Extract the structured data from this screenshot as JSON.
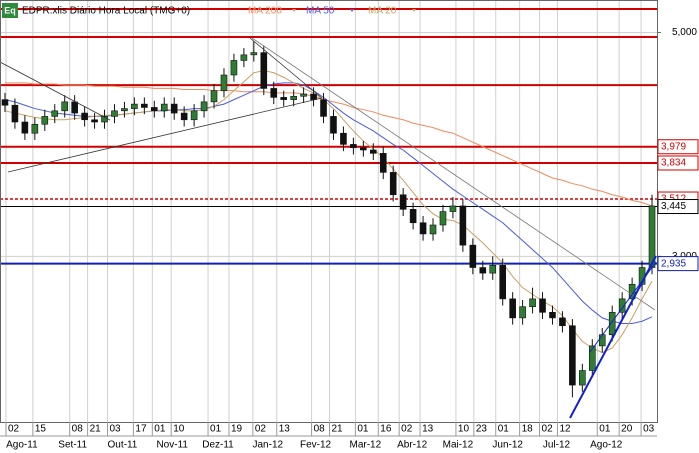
{
  "chart_data": {
    "type": "candlestick",
    "badge": "Eq",
    "title": "EDPR.xlis Diário Hora Local (TMG+0)",
    "open": [
      4.4,
      4.35,
      4.2,
      4.1,
      4.18,
      4.25,
      4.3,
      4.38,
      4.28,
      4.22,
      4.2,
      4.25,
      4.3,
      4.32,
      4.36,
      4.33,
      4.3,
      4.36,
      4.28,
      4.22,
      4.3,
      4.38,
      4.48,
      4.62,
      4.75,
      4.8,
      4.82,
      4.5,
      4.42,
      4.4,
      4.43,
      4.45,
      4.4,
      4.25,
      4.1,
      4.0,
      3.97,
      3.95,
      3.92,
      3.75,
      3.55,
      3.42,
      3.3,
      3.2,
      3.28,
      3.4,
      3.45,
      3.1,
      2.9,
      2.85,
      2.92,
      2.62,
      2.45,
      2.55,
      2.62,
      2.5,
      2.45,
      2.38,
      1.85,
      1.98,
      2.2,
      2.3,
      2.5,
      2.62,
      2.75,
      2.9
    ],
    "high": [
      4.46,
      4.41,
      4.26,
      4.24,
      4.31,
      4.36,
      4.44,
      4.44,
      4.34,
      4.28,
      4.31,
      4.36,
      4.38,
      4.42,
      4.42,
      4.39,
      4.42,
      4.42,
      4.34,
      4.36,
      4.44,
      4.54,
      4.68,
      4.81,
      4.86,
      4.92,
      4.88,
      4.56,
      4.48,
      4.49,
      4.51,
      4.51,
      4.46,
      4.31,
      4.16,
      4.06,
      4.03,
      4.01,
      3.98,
      3.81,
      3.61,
      3.48,
      3.36,
      3.34,
      3.46,
      3.53,
      3.51,
      3.16,
      2.96,
      3.0,
      2.98,
      2.68,
      2.61,
      2.72,
      2.68,
      2.56,
      2.51,
      2.44,
      2.04,
      2.26,
      2.36,
      2.56,
      2.68,
      2.81,
      2.96,
      3.55
    ],
    "low": [
      4.29,
      4.14,
      4.04,
      4.04,
      4.12,
      4.19,
      4.24,
      4.22,
      4.16,
      4.14,
      4.14,
      4.19,
      4.24,
      4.26,
      4.27,
      4.24,
      4.24,
      4.22,
      4.16,
      4.16,
      4.24,
      4.32,
      4.42,
      4.56,
      4.69,
      4.74,
      4.44,
      4.36,
      4.34,
      4.34,
      4.37,
      4.34,
      4.19,
      4.04,
      3.94,
      3.91,
      3.89,
      3.86,
      3.69,
      3.49,
      3.36,
      3.24,
      3.14,
      3.14,
      3.22,
      3.34,
      3.04,
      2.84,
      2.79,
      2.79,
      2.56,
      2.39,
      2.39,
      2.49,
      2.44,
      2.39,
      2.32,
      1.74,
      1.79,
      1.92,
      2.14,
      2.24,
      2.44,
      2.56,
      2.69,
      2.84
    ],
    "close": [
      4.35,
      4.2,
      4.1,
      4.18,
      4.25,
      4.3,
      4.38,
      4.28,
      4.22,
      4.2,
      4.25,
      4.3,
      4.32,
      4.36,
      4.33,
      4.3,
      4.36,
      4.28,
      4.22,
      4.3,
      4.38,
      4.48,
      4.62,
      4.75,
      4.8,
      4.82,
      4.5,
      4.42,
      4.4,
      4.43,
      4.45,
      4.4,
      4.25,
      4.1,
      4.0,
      3.97,
      3.95,
      3.92,
      3.75,
      3.55,
      3.42,
      3.3,
      3.2,
      3.28,
      3.4,
      3.45,
      3.1,
      2.9,
      2.85,
      2.92,
      2.62,
      2.45,
      2.55,
      2.62,
      2.5,
      2.45,
      2.38,
      1.85,
      1.98,
      2.2,
      2.3,
      2.5,
      2.62,
      2.75,
      2.9,
      3.45
    ],
    "up_color": "#2e7d32",
    "down_color": "#111111",
    "series": [
      {
        "name": "MA 200",
        "color": "#f08a5a",
        "values": [
          4.55,
          4.55,
          4.55,
          4.54,
          4.54,
          4.54,
          4.53,
          4.53,
          4.53,
          4.52,
          4.52,
          4.52,
          4.51,
          4.51,
          4.51,
          4.5,
          4.5,
          4.5,
          4.49,
          4.49,
          4.49,
          4.48,
          4.48,
          4.48,
          4.47,
          4.47,
          4.47,
          4.46,
          4.46,
          4.46,
          4.45,
          4.43,
          4.4,
          4.38,
          4.36,
          4.33,
          4.31,
          4.29,
          4.26,
          4.24,
          4.22,
          4.19,
          4.17,
          4.15,
          4.12,
          4.1,
          4.06,
          4.02,
          3.98,
          3.94,
          3.9,
          3.86,
          3.82,
          3.78,
          3.74,
          3.7,
          3.68,
          3.65,
          3.63,
          3.6,
          3.58,
          3.55,
          3.53,
          3.5,
          3.48,
          3.45
        ]
      },
      {
        "name": "MA 50",
        "color": "#4a5ae0",
        "values": [
          4.4,
          4.38,
          4.35,
          4.32,
          4.3,
          4.28,
          4.27,
          4.26,
          4.25,
          4.25,
          4.25,
          4.26,
          4.27,
          4.28,
          4.29,
          4.3,
          4.3,
          4.31,
          4.31,
          4.32,
          4.32,
          4.34,
          4.36,
          4.4,
          4.44,
          4.48,
          4.52,
          4.54,
          4.55,
          4.55,
          4.53,
          4.48,
          4.42,
          4.35,
          4.28,
          4.22,
          4.17,
          4.12,
          4.06,
          4.0,
          3.95,
          3.88,
          3.81,
          3.74,
          3.67,
          3.6,
          3.54,
          3.48,
          3.42,
          3.36,
          3.3,
          3.22,
          3.14,
          3.06,
          2.98,
          2.9,
          2.8,
          2.7,
          2.6,
          2.52,
          2.45,
          2.42,
          2.4,
          2.4,
          2.42,
          2.46
        ]
      },
      {
        "name": "MA 20",
        "color": "#c8a060",
        "values": [
          4.3,
          4.28,
          4.26,
          4.24,
          4.23,
          4.22,
          4.22,
          4.23,
          4.24,
          4.25,
          4.26,
          4.26,
          4.27,
          4.28,
          4.29,
          4.3,
          4.31,
          4.31,
          4.3,
          4.3,
          4.31,
          4.34,
          4.4,
          4.48,
          4.56,
          4.64,
          4.66,
          4.64,
          4.6,
          4.55,
          4.5,
          4.46,
          4.4,
          4.32,
          4.22,
          4.12,
          4.03,
          3.96,
          3.88,
          3.78,
          3.68,
          3.57,
          3.46,
          3.38,
          3.33,
          3.32,
          3.28,
          3.2,
          3.12,
          3.03,
          2.94,
          2.82,
          2.72,
          2.66,
          2.6,
          2.55,
          2.47,
          2.35,
          2.24,
          2.18,
          2.14,
          2.18,
          2.3,
          2.45,
          2.62,
          2.78
        ]
      }
    ],
    "ylim": [
      1.52,
      5.29
    ],
    "yticks": [
      {
        "value": 5,
        "label": "5,000"
      },
      {
        "value": 3,
        "label": "3,000"
      }
    ],
    "xlim": [
      0,
      66
    ],
    "xticks": [
      {
        "value": 0.6,
        "label": "02"
      },
      {
        "value": 3.3,
        "label": "15"
      },
      {
        "value": 7,
        "label": "08"
      },
      {
        "value": 8.8,
        "label": "21"
      },
      {
        "value": 10.8,
        "label": "03"
      },
      {
        "value": 13.4,
        "label": "17"
      },
      {
        "value": 15.3,
        "label": "01"
      },
      {
        "value": 17.2,
        "label": "10"
      },
      {
        "value": 20.9,
        "label": "01"
      },
      {
        "value": 23,
        "label": "19"
      },
      {
        "value": 25.4,
        "label": "02"
      },
      {
        "value": 27.8,
        "label": "13"
      },
      {
        "value": 31.3,
        "label": "08"
      },
      {
        "value": 33.1,
        "label": "21"
      },
      {
        "value": 35.7,
        "label": "01"
      },
      {
        "value": 38,
        "label": "16"
      },
      {
        "value": 40.1,
        "label": "02"
      },
      {
        "value": 42.2,
        "label": "13"
      },
      {
        "value": 45.8,
        "label": "10"
      },
      {
        "value": 47.6,
        "label": "23"
      },
      {
        "value": 49.8,
        "label": "01"
      },
      {
        "value": 52.2,
        "label": "18"
      },
      {
        "value": 54.2,
        "label": "02"
      },
      {
        "value": 56,
        "label": "12"
      },
      {
        "value": 60,
        "label": "01"
      },
      {
        "value": 62.2,
        "label": "20"
      },
      {
        "value": 64.4,
        "label": "03"
      }
    ],
    "month_ticks": [
      {
        "value": 2.2,
        "label": "Ago-11"
      },
      {
        "value": 7.3,
        "label": "Set-11"
      },
      {
        "value": 12.3,
        "label": "Out-11"
      },
      {
        "value": 17.3,
        "label": "Nov-11"
      },
      {
        "value": 21.9,
        "label": "Dez-11"
      },
      {
        "value": 26.9,
        "label": "Jan-12"
      },
      {
        "value": 31.7,
        "label": "Fev-12"
      },
      {
        "value": 36.7,
        "label": "Mar-12"
      },
      {
        "value": 41.4,
        "label": "Abr-12"
      },
      {
        "value": 46,
        "label": "Mai-12"
      },
      {
        "value": 51,
        "label": "Jun-12"
      },
      {
        "value": 55.9,
        "label": "Jul-12"
      },
      {
        "value": 60.9,
        "label": "Ago-12"
      }
    ],
    "levels": [
      {
        "value": 5.21,
        "color": "#d00000"
      },
      {
        "value": 4.96,
        "color": "#d00000"
      },
      {
        "value": 4.53,
        "color": "#d00000"
      },
      {
        "value": 3.979,
        "label": "3,979",
        "color": "#d00000"
      },
      {
        "value": 3.834,
        "label": "3,834",
        "color": "#d00000"
      },
      {
        "value": 3.512,
        "label": "3,512",
        "color": "#d00000",
        "dash": true
      },
      {
        "value": 3.445,
        "label": "3,445",
        "color": "#000000"
      },
      {
        "value": 2.935,
        "label": "2,935",
        "color": "#1020b0"
      }
    ],
    "grid": true
  }
}
